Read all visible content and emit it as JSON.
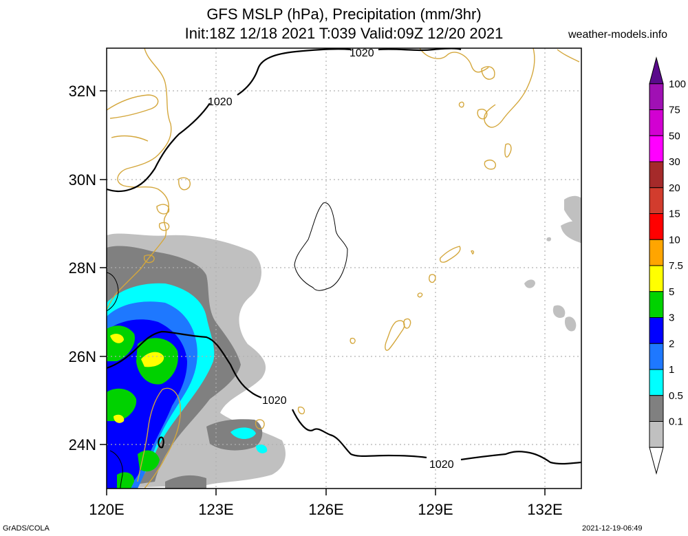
{
  "header": {
    "title_line1": "GFS MSLP (hPa), Precipitation (mm/3hr)",
    "title_line2": "Init:18Z 12/18 2021 T:039 Valid:09Z 12/20 2021",
    "site": "weather-models.info"
  },
  "footer": {
    "left": "GrADS/COLA",
    "right": "2021-12-19-06:49"
  },
  "axes": {
    "lon_labels": [
      "120E",
      "123E",
      "126E",
      "129E",
      "132E"
    ],
    "lat_labels": [
      "32N",
      "30N",
      "28N",
      "26N",
      "24N"
    ]
  },
  "contours": {
    "isobar_label": "1020"
  },
  "legend": {
    "levels": [
      "100",
      "75",
      "50",
      "30",
      "20",
      "15",
      "10",
      "7.5",
      "5",
      "3",
      "2",
      "1",
      "0.5",
      "0.1"
    ],
    "colors": [
      "#5a0a8c",
      "#a010b4",
      "#d200d2",
      "#ff00ff",
      "#a52a2a",
      "#d23c2d",
      "#ff0000",
      "#ffa500",
      "#ffff00",
      "#00d200",
      "#0000ff",
      "#1e78ff",
      "#00ffff",
      "#808080",
      "#c0c0c0",
      "#ffffff"
    ]
  },
  "colors": {
    "coastline": "#d4a73c",
    "grid": "#b0b0b0"
  }
}
